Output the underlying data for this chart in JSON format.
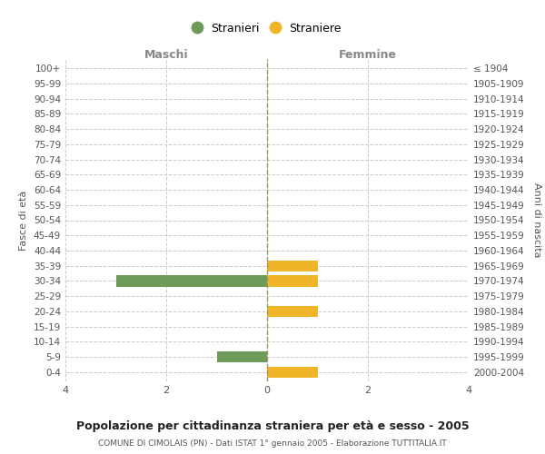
{
  "age_groups": [
    "0-4",
    "5-9",
    "10-14",
    "15-19",
    "20-24",
    "25-29",
    "30-34",
    "35-39",
    "40-44",
    "45-49",
    "50-54",
    "55-59",
    "60-64",
    "65-69",
    "70-74",
    "75-79",
    "80-84",
    "85-89",
    "90-94",
    "95-99",
    "100+"
  ],
  "birth_years": [
    "2000-2004",
    "1995-1999",
    "1990-1994",
    "1985-1989",
    "1980-1984",
    "1975-1979",
    "1970-1974",
    "1965-1969",
    "1960-1964",
    "1955-1959",
    "1950-1954",
    "1945-1949",
    "1940-1944",
    "1935-1939",
    "1930-1934",
    "1925-1929",
    "1920-1924",
    "1915-1919",
    "1910-1914",
    "1905-1909",
    "≤ 1904"
  ],
  "maschi": [
    0,
    1,
    0,
    0,
    0,
    0,
    3,
    0,
    0,
    0,
    0,
    0,
    0,
    0,
    0,
    0,
    0,
    0,
    0,
    0,
    0
  ],
  "femmine": [
    1,
    0,
    0,
    0,
    1,
    0,
    1,
    1,
    0,
    0,
    0,
    0,
    0,
    0,
    0,
    0,
    0,
    0,
    0,
    0,
    0
  ],
  "male_color": "#6d9b5a",
  "female_color": "#f0b429",
  "background_color": "#ffffff",
  "grid_color": "#cccccc",
  "title": "Popolazione per cittadinanza straniera per età e sesso - 2005",
  "subtitle": "COMUNE DI CIMOLAIS (PN) - Dati ISTAT 1° gennaio 2005 - Elaborazione TUTTITALIA.IT",
  "ylabel_left": "Fasce di età",
  "ylabel_right": "Anni di nascita",
  "xlabel_left": "Maschi",
  "xlabel_right": "Femmine",
  "xlim": 4,
  "legend_stranieri": "Stranieri",
  "legend_straniere": "Straniere"
}
